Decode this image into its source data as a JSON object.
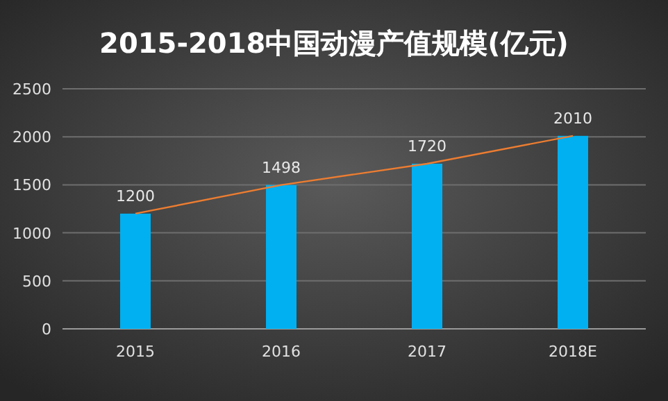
{
  "chart_data": {
    "type": "bar",
    "title": "2015-2018中国动漫产值规模(亿元)",
    "categories": [
      "2015",
      "2016",
      "2017",
      "2018E"
    ],
    "series": [
      {
        "color": "#00b0f0",
        "values": [
          1200,
          1498,
          1720,
          2010
        ],
        "value_labels": [
          "1200",
          "1498",
          "1720",
          "2010"
        ]
      },
      {
        "type": "line",
        "color": "#ed7d31",
        "values": [
          1200,
          1498,
          1720,
          2010
        ]
      }
    ],
    "ylim": [
      0,
      2500
    ],
    "yticks": [
      0,
      500,
      1000,
      1500,
      2000,
      2500
    ],
    "grid": "y"
  }
}
